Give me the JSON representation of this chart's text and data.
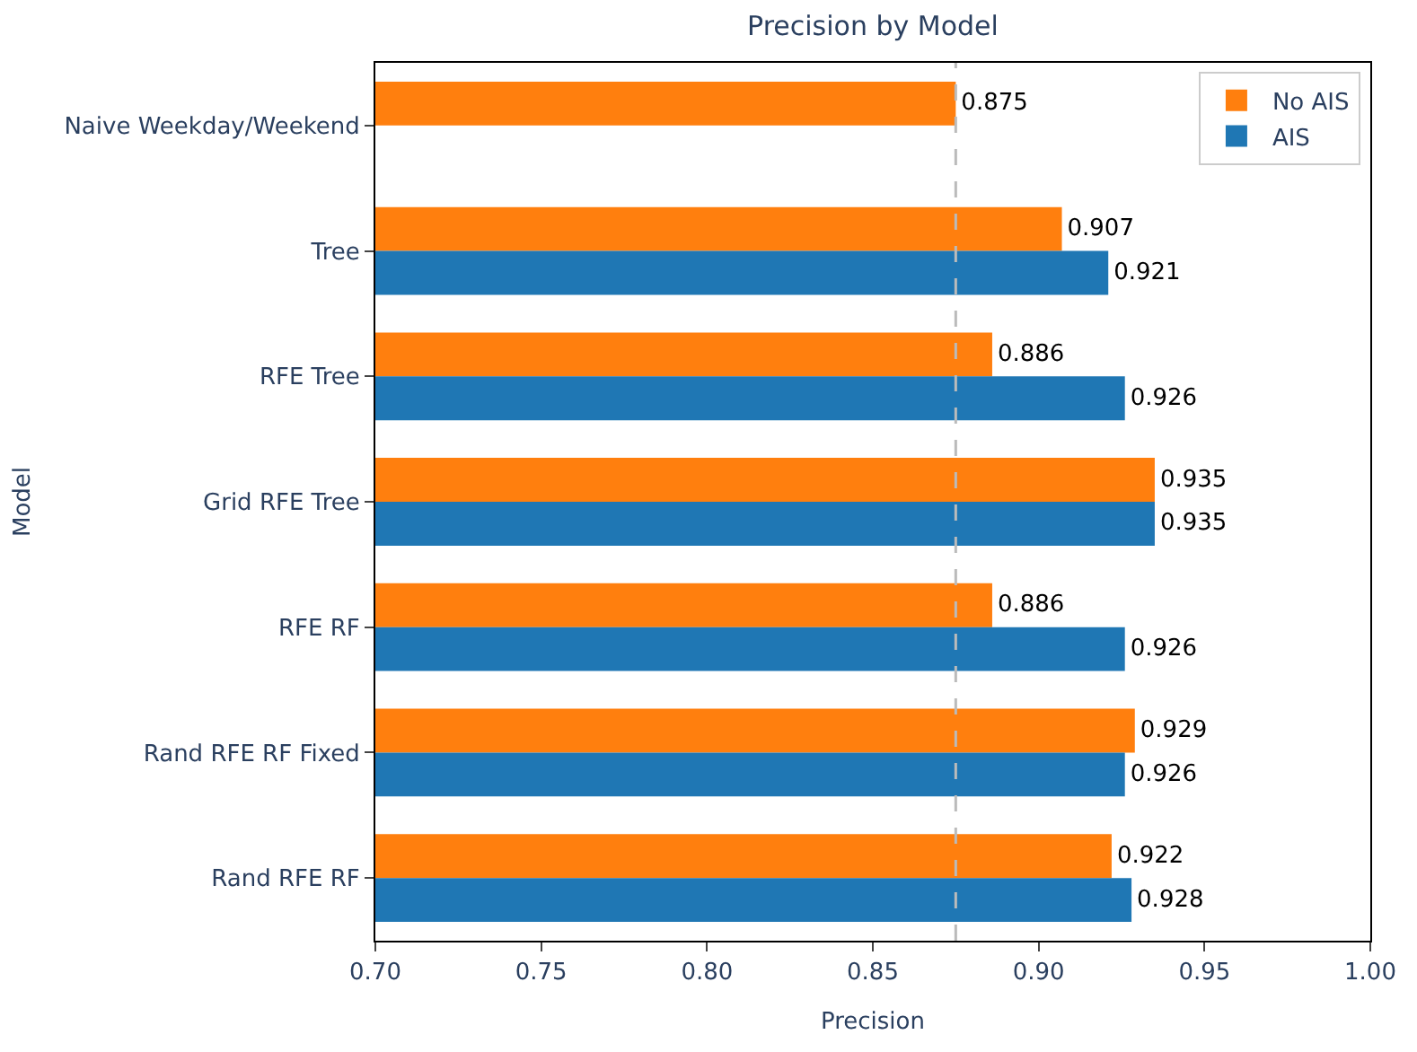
{
  "chart_data": {
    "type": "bar",
    "orientation": "horizontal",
    "title": "Precision by Model",
    "xlabel": "Precision",
    "ylabel": "Model",
    "categories": [
      "Naive Weekday/Weekend",
      "Tree",
      "RFE Tree",
      "Grid RFE Tree",
      "RFE RF",
      "Rand RFE RF Fixed",
      "Rand RFE RF"
    ],
    "series": [
      {
        "name": "No AIS",
        "color": "#ff7f0e",
        "values": [
          0.875,
          0.907,
          0.886,
          0.935,
          0.886,
          0.929,
          0.922
        ]
      },
      {
        "name": "AIS",
        "color": "#1f77b4",
        "values": [
          null,
          0.921,
          0.926,
          0.935,
          0.926,
          0.926,
          0.928
        ]
      }
    ],
    "xlim": [
      0.7,
      1.0
    ],
    "xticks": [
      {
        "value": 0.7,
        "label": "0.70"
      },
      {
        "value": 0.75,
        "label": "0.75"
      },
      {
        "value": 0.8,
        "label": "0.80"
      },
      {
        "value": 0.85,
        "label": "0.85"
      },
      {
        "value": 0.9,
        "label": "0.90"
      },
      {
        "value": 0.95,
        "label": "0.95"
      },
      {
        "value": 1.0,
        "label": "1.00"
      }
    ],
    "ref_lines": [
      {
        "axis": "x",
        "value": 0.875,
        "color": "#bbbbbb",
        "line_style": "dashed"
      }
    ],
    "data_labels": true,
    "legend": "top right"
  }
}
